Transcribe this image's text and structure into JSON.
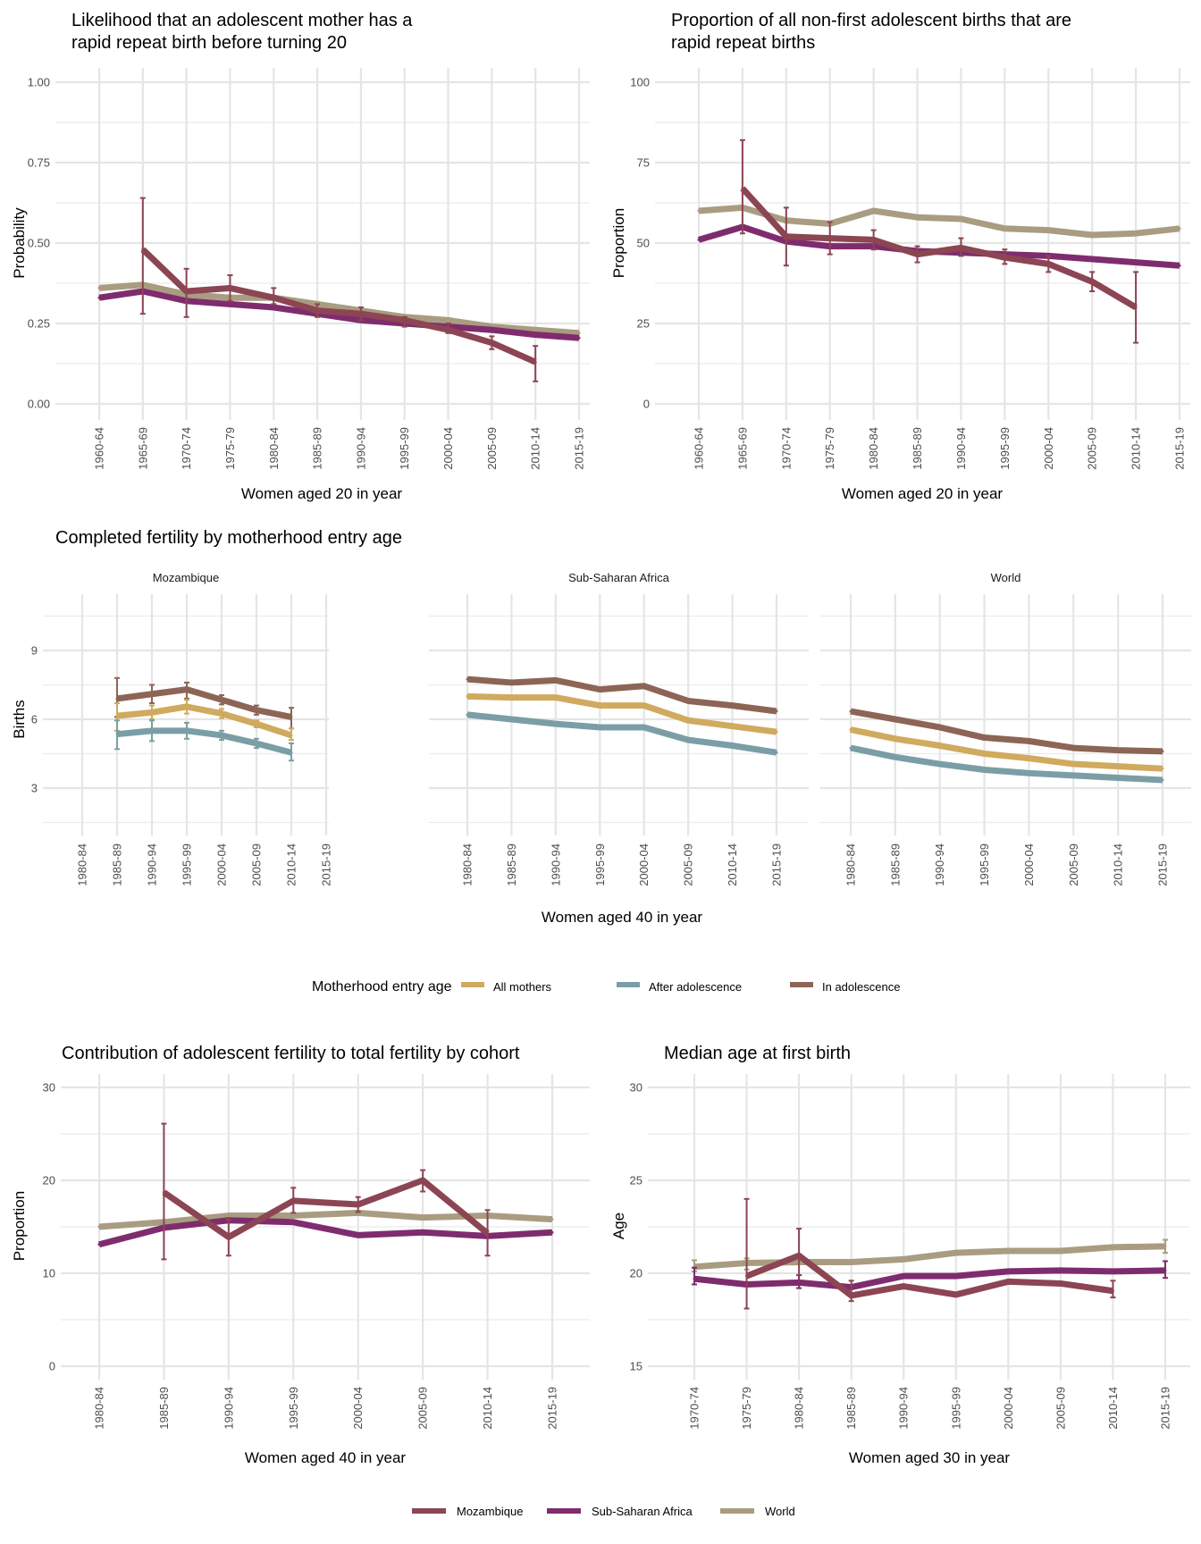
{
  "colors": {
    "Mozambique": "#8c4553",
    "Sub-Saharan Africa": "#7f2c6e",
    "World": "#a99c80",
    "All mothers": "#cfaa5f",
    "After adolescence": "#7b9ea6",
    "In adolescence": "#8c6556"
  },
  "legends": {
    "motherhood": {
      "title": "Motherhood entry age",
      "items": [
        "All mothers",
        "After adolescence",
        "In adolescence"
      ]
    },
    "region": {
      "items": [
        "Mozambique",
        "Sub-Saharan Africa",
        "World"
      ]
    }
  },
  "chart_data": [
    {
      "id": "rapid-repeat-likelihood",
      "type": "line",
      "title": "Likelihood that an adolescent mother has a rapid repeat birth before turning 20",
      "title_lines": [
        "Likelihood that an adolescent mother has a",
        "rapid repeat birth before turning 20"
      ],
      "xlabel": "Women aged 20 in year",
      "ylabel": "Probability",
      "ylim": [
        0,
        1
      ],
      "yticks": [
        0,
        0.25,
        0.5,
        0.75,
        1
      ],
      "ytick_labels": [
        "0.00",
        "0.25",
        "0.50",
        "0.75",
        "1.00"
      ],
      "grid": true,
      "categories": [
        "1960-64",
        "1965-69",
        "1970-74",
        "1975-79",
        "1980-84",
        "1985-89",
        "1990-94",
        "1995-99",
        "2000-04",
        "2005-09",
        "2010-14",
        "2015-19"
      ],
      "series": [
        {
          "name": "World",
          "values": [
            0.36,
            0.37,
            0.34,
            0.33,
            0.33,
            0.31,
            0.29,
            0.27,
            0.26,
            0.24,
            0.23,
            0.22
          ]
        },
        {
          "name": "Sub-Saharan Africa",
          "values": [
            0.33,
            0.35,
            0.32,
            0.31,
            0.3,
            0.28,
            0.26,
            0.25,
            0.24,
            0.23,
            0.215,
            0.205
          ]
        },
        {
          "name": "Mozambique",
          "values": [
            null,
            0.48,
            0.35,
            0.36,
            0.33,
            0.29,
            0.28,
            0.26,
            0.23,
            0.19,
            0.13,
            null
          ],
          "lower": [
            null,
            0.28,
            0.27,
            0.32,
            0.31,
            0.27,
            0.26,
            0.24,
            0.22,
            0.17,
            0.07,
            null
          ],
          "upper": [
            null,
            0.64,
            0.42,
            0.4,
            0.36,
            0.31,
            0.3,
            0.27,
            0.25,
            0.21,
            0.18,
            null
          ]
        }
      ]
    },
    {
      "id": "rapid-repeat-proportion",
      "type": "line",
      "title": "Proportion of all non-first adolescent births that are rapid repeat births",
      "title_lines": [
        "Proportion of all non-first adolescent births that are",
        "rapid repeat births"
      ],
      "xlabel": "Women aged 20 in year",
      "ylabel": "Proportion",
      "ylim": [
        0,
        100
      ],
      "yticks": [
        0,
        25,
        50,
        75,
        100
      ],
      "ytick_labels": [
        "0",
        "25",
        "50",
        "75",
        "100"
      ],
      "grid": true,
      "categories": [
        "1960-64",
        "1965-69",
        "1970-74",
        "1975-79",
        "1980-84",
        "1985-89",
        "1990-94",
        "1995-99",
        "2000-04",
        "2005-09",
        "2010-14",
        "2015-19"
      ],
      "series": [
        {
          "name": "World",
          "values": [
            60,
            61,
            57,
            56,
            60,
            58,
            57.5,
            54.5,
            54,
            52.5,
            53,
            54.5
          ]
        },
        {
          "name": "Sub-Saharan Africa",
          "values": [
            51,
            55,
            50.5,
            49,
            49,
            47.5,
            47,
            46.5,
            46,
            45,
            44,
            43
          ]
        },
        {
          "name": "Mozambique",
          "values": [
            null,
            67,
            52,
            51.5,
            51,
            46.5,
            48.5,
            45.5,
            43.5,
            38,
            30,
            null
          ],
          "lower": [
            null,
            53,
            43,
            46.5,
            48,
            44,
            46,
            43.5,
            41,
            35,
            19,
            null
          ],
          "upper": [
            null,
            82,
            61,
            56.5,
            54,
            49,
            51.5,
            48,
            46,
            41,
            41,
            null
          ]
        }
      ]
    },
    {
      "id": "completed-fertility",
      "type": "line",
      "title": "Completed fertility by motherhood entry age",
      "xlabel": "Women aged 40 in year",
      "ylabel": "Births",
      "ylim": [
        1.2,
        11.4
      ],
      "yticks": [
        3,
        6,
        9
      ],
      "ytick_labels": [
        "3",
        "6",
        "9"
      ],
      "grid": true,
      "categories": [
        "1980-84",
        "1985-89",
        "1990-94",
        "1995-99",
        "2000-04",
        "2005-09",
        "2010-14",
        "2015-19"
      ],
      "facets": [
        {
          "name": "Mozambique",
          "series": [
            {
              "name": "In adolescence",
              "values": [
                null,
                6.9,
                7.1,
                7.3,
                6.85,
                6.4,
                6.1,
                null
              ],
              "lower": [
                null,
                6.1,
                6.7,
                6.9,
                6.65,
                6.2,
                5.6,
                null
              ],
              "upper": [
                null,
                7.8,
                7.5,
                7.6,
                7.05,
                6.6,
                6.5,
                null
              ]
            },
            {
              "name": "All mothers",
              "values": [
                null,
                6.15,
                6.3,
                6.55,
                6.25,
                5.8,
                5.3,
                null
              ],
              "lower": [
                null,
                5.5,
                6.0,
                6.25,
                6.05,
                5.65,
                5.1,
                null
              ],
              "upper": [
                null,
                6.7,
                6.6,
                6.85,
                6.45,
                5.95,
                5.6,
                null
              ]
            },
            {
              "name": "After adolescence",
              "values": [
                null,
                5.35,
                5.5,
                5.5,
                5.3,
                4.95,
                4.55,
                null
              ],
              "lower": [
                null,
                4.7,
                5.05,
                5.15,
                5.1,
                4.75,
                4.2,
                null
              ],
              "upper": [
                null,
                5.95,
                5.95,
                5.85,
                5.5,
                5.15,
                4.95,
                null
              ]
            }
          ]
        },
        {
          "name": "Sub-Saharan Africa",
          "series": [
            {
              "name": "In adolescence",
              "values": [
                7.75,
                7.6,
                7.7,
                7.3,
                7.45,
                6.8,
                6.6,
                6.35
              ]
            },
            {
              "name": "All mothers",
              "values": [
                7.0,
                6.95,
                6.95,
                6.6,
                6.6,
                5.95,
                5.7,
                5.45
              ]
            },
            {
              "name": "After adolescence",
              "values": [
                6.2,
                6.0,
                5.8,
                5.65,
                5.65,
                5.1,
                4.85,
                4.55
              ]
            }
          ]
        },
        {
          "name": "World",
          "series": [
            {
              "name": "In adolescence",
              "values": [
                6.35,
                6.0,
                5.65,
                5.2,
                5.05,
                4.75,
                4.65,
                4.6
              ]
            },
            {
              "name": "All mothers",
              "values": [
                5.55,
                5.15,
                4.85,
                4.5,
                4.3,
                4.05,
                3.95,
                3.85
              ]
            },
            {
              "name": "After adolescence",
              "values": [
                4.75,
                4.35,
                4.05,
                3.8,
                3.65,
                3.55,
                3.45,
                3.35
              ]
            }
          ]
        }
      ]
    },
    {
      "id": "adolescent-contribution",
      "type": "line",
      "title": "Contribution of adolescent fertility to total fertility by cohort",
      "xlabel": "Women aged 40 in year",
      "ylabel": "Proportion",
      "ylim": [
        0,
        30
      ],
      "yticks": [
        0,
        10,
        20,
        30
      ],
      "ytick_labels": [
        "0",
        "10",
        "20",
        "30"
      ],
      "grid": true,
      "categories": [
        "1980-84",
        "1985-89",
        "1990-94",
        "1995-99",
        "2000-04",
        "2005-09",
        "2010-14",
        "2015-19"
      ],
      "series": [
        {
          "name": "World",
          "values": [
            15.0,
            15.5,
            16.2,
            16.2,
            16.5,
            16.0,
            16.2,
            15.8
          ]
        },
        {
          "name": "Sub-Saharan Africa",
          "values": [
            13.1,
            14.9,
            15.7,
            15.5,
            14.1,
            14.4,
            14.0,
            14.4
          ]
        },
        {
          "name": "Mozambique",
          "values": [
            null,
            18.7,
            13.9,
            17.8,
            17.4,
            20.0,
            14.3,
            null
          ],
          "lower": [
            null,
            11.5,
            11.9,
            16.5,
            16.6,
            18.8,
            11.9,
            null
          ],
          "upper": [
            null,
            26.1,
            15.8,
            19.2,
            18.2,
            21.1,
            16.8,
            null
          ]
        }
      ]
    },
    {
      "id": "median-age-first-birth",
      "type": "line",
      "title": "Median age at first birth",
      "xlabel": "Women aged 30 in year",
      "ylabel": "Age",
      "ylim": [
        15,
        30
      ],
      "yticks": [
        15,
        20,
        25,
        30
      ],
      "ytick_labels": [
        "15",
        "20",
        "25",
        "30"
      ],
      "grid": true,
      "categories": [
        "1970-74",
        "1975-79",
        "1980-84",
        "1985-89",
        "1990-94",
        "1995-99",
        "2000-04",
        "2005-09",
        "2010-14",
        "2015-19"
      ],
      "series": [
        {
          "name": "World",
          "values": [
            20.35,
            20.55,
            20.6,
            20.6,
            20.75,
            21.1,
            21.2,
            21.2,
            21.4,
            21.45
          ],
          "lower": [
            20.1,
            20.2,
            null,
            null,
            null,
            null,
            null,
            null,
            null,
            21.1
          ],
          "upper": [
            20.7,
            20.8,
            null,
            null,
            null,
            null,
            null,
            null,
            null,
            21.8
          ]
        },
        {
          "name": "Sub-Saharan Africa",
          "values": [
            19.7,
            19.4,
            19.5,
            19.25,
            19.85,
            19.85,
            20.1,
            20.15,
            20.1,
            20.15
          ],
          "lower": [
            19.4,
            null,
            19.2,
            null,
            null,
            null,
            null,
            null,
            null,
            19.75
          ],
          "upper": [
            20.3,
            null,
            19.9,
            19.6,
            null,
            null,
            null,
            null,
            null,
            20.65
          ]
        },
        {
          "name": "Mozambique",
          "values": [
            null,
            19.85,
            20.95,
            18.8,
            19.3,
            18.85,
            19.55,
            19.45,
            19.05,
            null
          ],
          "lower": [
            null,
            18.1,
            19.9,
            18.5,
            null,
            null,
            null,
            null,
            18.7,
            null
          ],
          "upper": [
            null,
            24.0,
            22.4,
            19.6,
            null,
            null,
            null,
            null,
            19.6,
            null
          ]
        }
      ]
    }
  ]
}
